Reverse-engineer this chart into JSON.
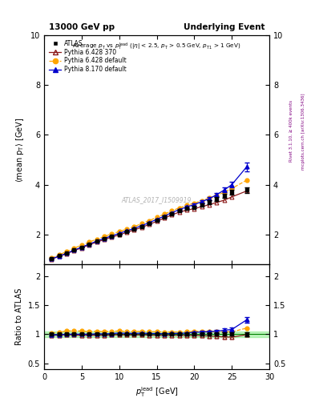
{
  "title_left": "13000 GeV pp",
  "title_right": "Underlying Event",
  "watermark": "ATLAS_2017_I1509919",
  "ylim_main": [
    0.8,
    10
  ],
  "ylim_ratio": [
    0.4,
    2.2
  ],
  "atlas_x": [
    1,
    2,
    3,
    4,
    5,
    6,
    7,
    8,
    9,
    10,
    11,
    12,
    13,
    14,
    15,
    16,
    17,
    18,
    19,
    20,
    21,
    22,
    23,
    24,
    25,
    27
  ],
  "atlas_y": [
    1.04,
    1.15,
    1.25,
    1.38,
    1.5,
    1.62,
    1.73,
    1.84,
    1.93,
    2.01,
    2.12,
    2.22,
    2.32,
    2.45,
    2.58,
    2.72,
    2.84,
    2.96,
    3.05,
    3.1,
    3.2,
    3.3,
    3.42,
    3.55,
    3.7,
    3.78
  ],
  "atlas_yerr": [
    0.02,
    0.02,
    0.02,
    0.02,
    0.02,
    0.02,
    0.02,
    0.02,
    0.02,
    0.02,
    0.02,
    0.02,
    0.03,
    0.03,
    0.03,
    0.04,
    0.04,
    0.04,
    0.05,
    0.05,
    0.06,
    0.07,
    0.08,
    0.09,
    0.1,
    0.12
  ],
  "py6_370_x": [
    1,
    2,
    3,
    4,
    5,
    6,
    7,
    8,
    9,
    10,
    11,
    12,
    13,
    14,
    15,
    16,
    17,
    18,
    19,
    20,
    21,
    22,
    23,
    24,
    25,
    27
  ],
  "py6_370_y": [
    1.02,
    1.13,
    1.24,
    1.36,
    1.47,
    1.59,
    1.7,
    1.8,
    1.9,
    1.99,
    2.09,
    2.19,
    2.29,
    2.41,
    2.53,
    2.66,
    2.79,
    2.9,
    2.98,
    3.04,
    3.12,
    3.2,
    3.29,
    3.38,
    3.51,
    3.75
  ],
  "py6_def_x": [
    1,
    2,
    3,
    4,
    5,
    6,
    7,
    8,
    9,
    10,
    11,
    12,
    13,
    14,
    15,
    16,
    17,
    18,
    19,
    20,
    21,
    22,
    23,
    24,
    25,
    27
  ],
  "py6_def_y": [
    1.06,
    1.19,
    1.32,
    1.46,
    1.58,
    1.7,
    1.82,
    1.92,
    2.03,
    2.12,
    2.22,
    2.32,
    2.44,
    2.56,
    2.69,
    2.82,
    2.95,
    3.07,
    3.17,
    3.26,
    3.36,
    3.46,
    3.57,
    3.7,
    3.85,
    4.18
  ],
  "py8_def_x": [
    1,
    2,
    3,
    4,
    5,
    6,
    7,
    8,
    9,
    10,
    11,
    12,
    13,
    14,
    15,
    16,
    17,
    18,
    19,
    20,
    21,
    22,
    23,
    24,
    25,
    27
  ],
  "py8_def_y": [
    1.03,
    1.14,
    1.25,
    1.38,
    1.5,
    1.62,
    1.74,
    1.85,
    1.95,
    2.05,
    2.15,
    2.25,
    2.36,
    2.48,
    2.61,
    2.74,
    2.88,
    3.0,
    3.11,
    3.2,
    3.32,
    3.44,
    3.6,
    3.79,
    4.0,
    4.72
  ],
  "py8_def_yerr": [
    0.01,
    0.01,
    0.01,
    0.01,
    0.01,
    0.01,
    0.01,
    0.01,
    0.01,
    0.01,
    0.01,
    0.01,
    0.02,
    0.02,
    0.02,
    0.03,
    0.03,
    0.03,
    0.04,
    0.04,
    0.05,
    0.06,
    0.08,
    0.1,
    0.12,
    0.18
  ],
  "atlas_color": "#000000",
  "py6_370_color": "#8b1a1a",
  "py6_def_color": "#ffa500",
  "py8_def_color": "#0000cc",
  "band_color": "#90EE90",
  "band_alpha": 0.6,
  "yticks_main": [
    2,
    4,
    6,
    8,
    10
  ],
  "yticks_ratio": [
    0.5,
    1.0,
    1.5,
    2.0
  ],
  "xticks": [
    0,
    5,
    10,
    15,
    20,
    25,
    30
  ]
}
